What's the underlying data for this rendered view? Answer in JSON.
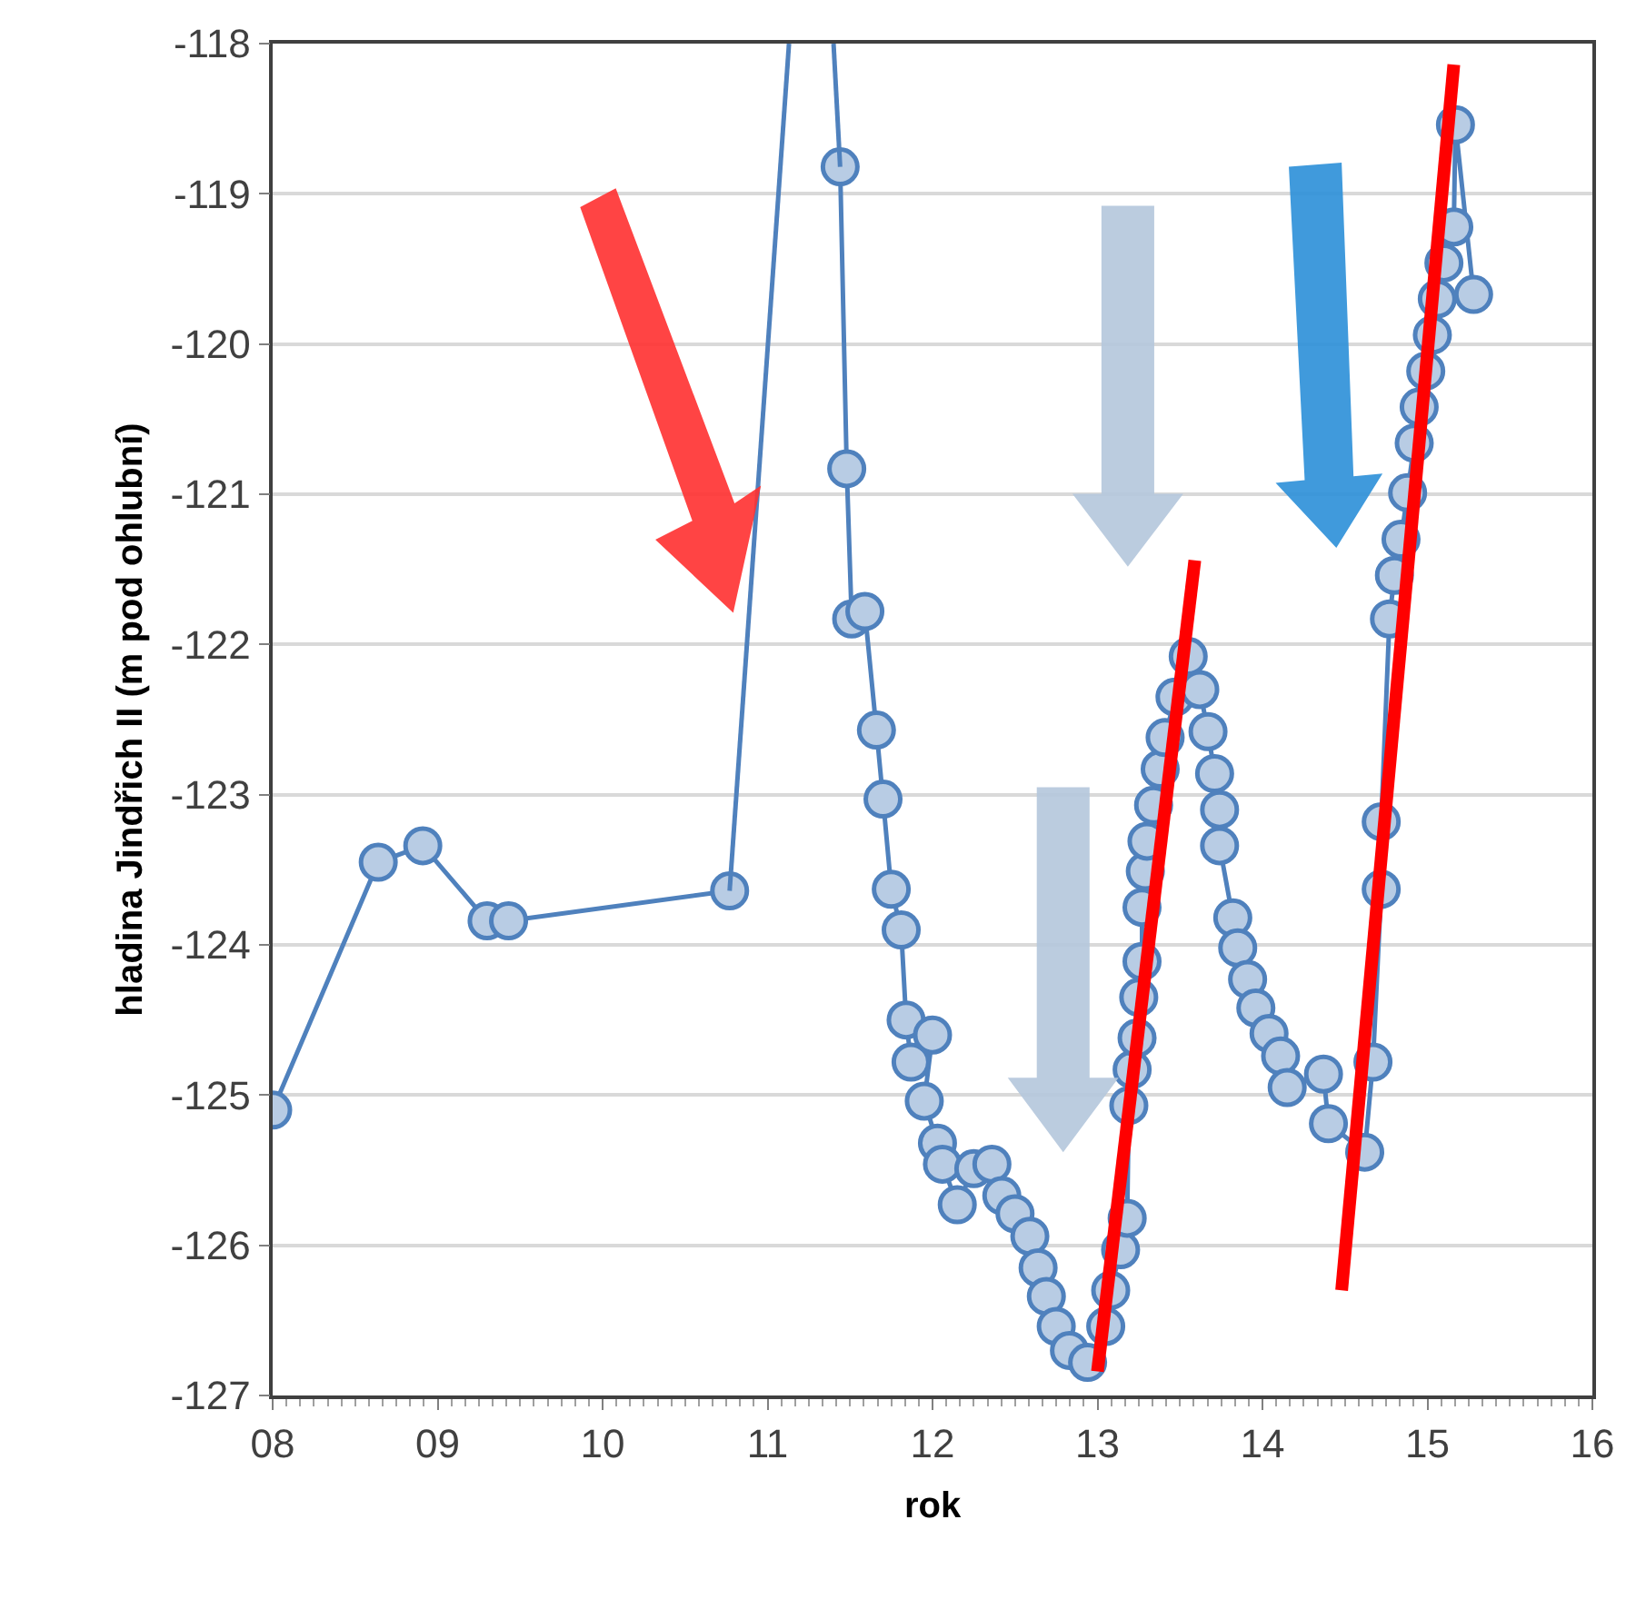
{
  "chart_data": {
    "type": "line",
    "xlabel": "rok",
    "ylabel": "hladina Jindřich II (m pod ohlubní)",
    "xlim": [
      8,
      16
    ],
    "xticks": [
      {
        "value": 8,
        "label": "08"
      },
      {
        "value": 9,
        "label": "09"
      },
      10,
      11,
      12,
      13,
      14,
      15,
      16
    ],
    "ylim": [
      -127,
      -118
    ],
    "yticks": [
      -127,
      -126,
      -125,
      -124,
      -123,
      -122,
      -121,
      -120,
      -119,
      -118
    ],
    "grid": "y",
    "marker": "circle",
    "line_style": "solid",
    "series": [
      {
        "color": "#4f81bd",
        "x": [
          8.0,
          8.64,
          8.91,
          9.3,
          9.43,
          10.77,
          null,
          11.44,
          11.48,
          11.51,
          11.59,
          11.66,
          11.7,
          11.75,
          11.81,
          11.84,
          11.87,
          12.0,
          11.95,
          12.03,
          12.06,
          12.15,
          12.25,
          12.36,
          12.42,
          12.5,
          12.59,
          12.64,
          12.69,
          12.75,
          12.83,
          12.94,
          13.05,
          13.08,
          13.14,
          13.18,
          13.19,
          13.21,
          13.24,
          13.25,
          13.27,
          13.27,
          13.29,
          13.3,
          13.34,
          13.38,
          13.41,
          13.47,
          13.55,
          13.62,
          13.67,
          13.71,
          13.74,
          13.74,
          13.82,
          13.85,
          13.91,
          13.96,
          14.04,
          14.11,
          14.15,
          14.37,
          14.4,
          14.62,
          14.67,
          14.72,
          14.72,
          14.77,
          14.8,
          14.84,
          14.88,
          14.92,
          14.95,
          14.99,
          15.03,
          15.06,
          15.1,
          15.16,
          15.17,
          15.28
        ],
        "values": [
          -125.1,
          -123.45,
          -123.34,
          -123.84,
          -123.84,
          -123.64,
          null,
          -118.82,
          -120.83,
          -121.83,
          -121.78,
          -122.57,
          -123.03,
          -123.63,
          -123.9,
          -124.5,
          -124.78,
          -124.6,
          -125.04,
          -125.32,
          -125.46,
          -125.73,
          -125.49,
          -125.46,
          -125.67,
          -125.79,
          -125.94,
          -126.15,
          -126.34,
          -126.54,
          -126.7,
          -126.78,
          -126.54,
          -126.3,
          -126.03,
          -125.82,
          -125.07,
          -124.83,
          -124.62,
          -124.35,
          -124.11,
          -123.75,
          -123.51,
          -123.31,
          -123.07,
          -122.83,
          -122.62,
          -122.35,
          -122.08,
          -122.3,
          -122.58,
          -122.86,
          -123.1,
          -123.34,
          -123.82,
          -124.02,
          -124.23,
          -124.42,
          -124.59,
          -124.74,
          -124.95,
          -124.86,
          -125.19,
          -125.38,
          -124.78,
          -123.63,
          -123.18,
          -121.83,
          -121.54,
          -121.3,
          -120.99,
          -120.66,
          -120.42,
          -120.18,
          -119.94,
          -119.7,
          -119.46,
          -119.22,
          -118.54,
          -119.67
        ]
      },
      {
        "type": "line",
        "marker": "none",
        "color": "#4f81bd",
        "x": [
          10.77,
          11.13,
          null,
          11.4,
          11.44
        ],
        "values": [
          -123.64,
          -118,
          null,
          -118,
          -118.82
        ]
      },
      {
        "type": "line",
        "marker": "none",
        "color": "#ff0000",
        "x": [
          13.0,
          13.59
        ],
        "values": [
          -126.84,
          -121.44
        ]
      },
      {
        "type": "line",
        "marker": "none",
        "color": "#ff0000",
        "x": [
          14.48,
          15.16
        ],
        "values": [
          -126.3,
          -118.14
        ]
      }
    ]
  }
}
